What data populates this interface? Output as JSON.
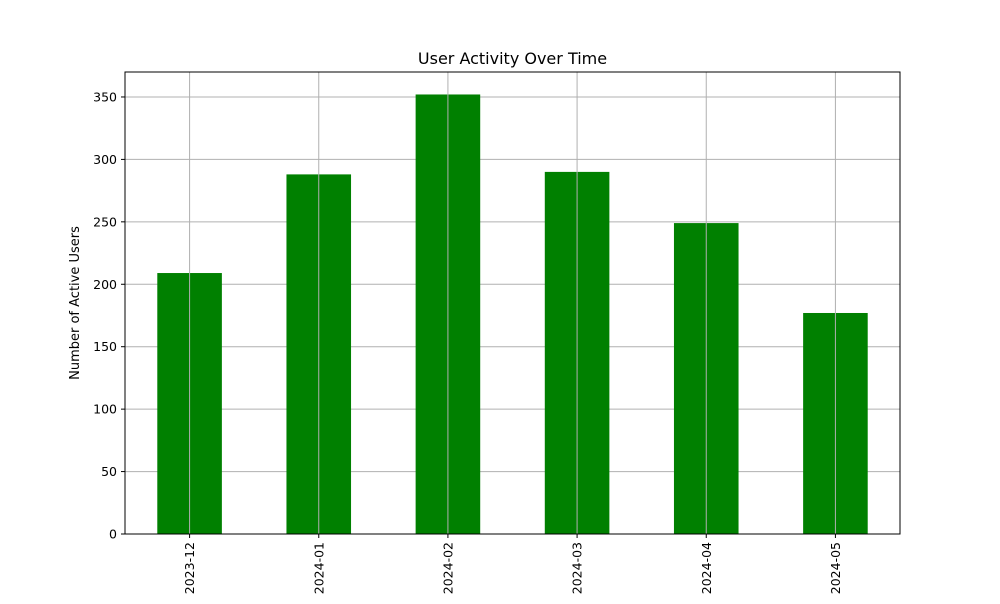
{
  "chart_data": {
    "type": "bar",
    "title": "User Activity Over Time",
    "xlabel": "",
    "ylabel": "Number of Active Users",
    "categories": [
      "2023-12",
      "2024-01",
      "2024-02",
      "2024-03",
      "2024-04",
      "2024-05"
    ],
    "values": [
      209,
      288,
      352,
      290,
      249,
      177
    ],
    "ylim": [
      0,
      370
    ],
    "yticks": [
      0,
      50,
      100,
      150,
      200,
      250,
      300,
      350
    ],
    "grid": true,
    "bar_color": "#008000",
    "grid_color": "#b0b0b0",
    "legend": "none"
  }
}
